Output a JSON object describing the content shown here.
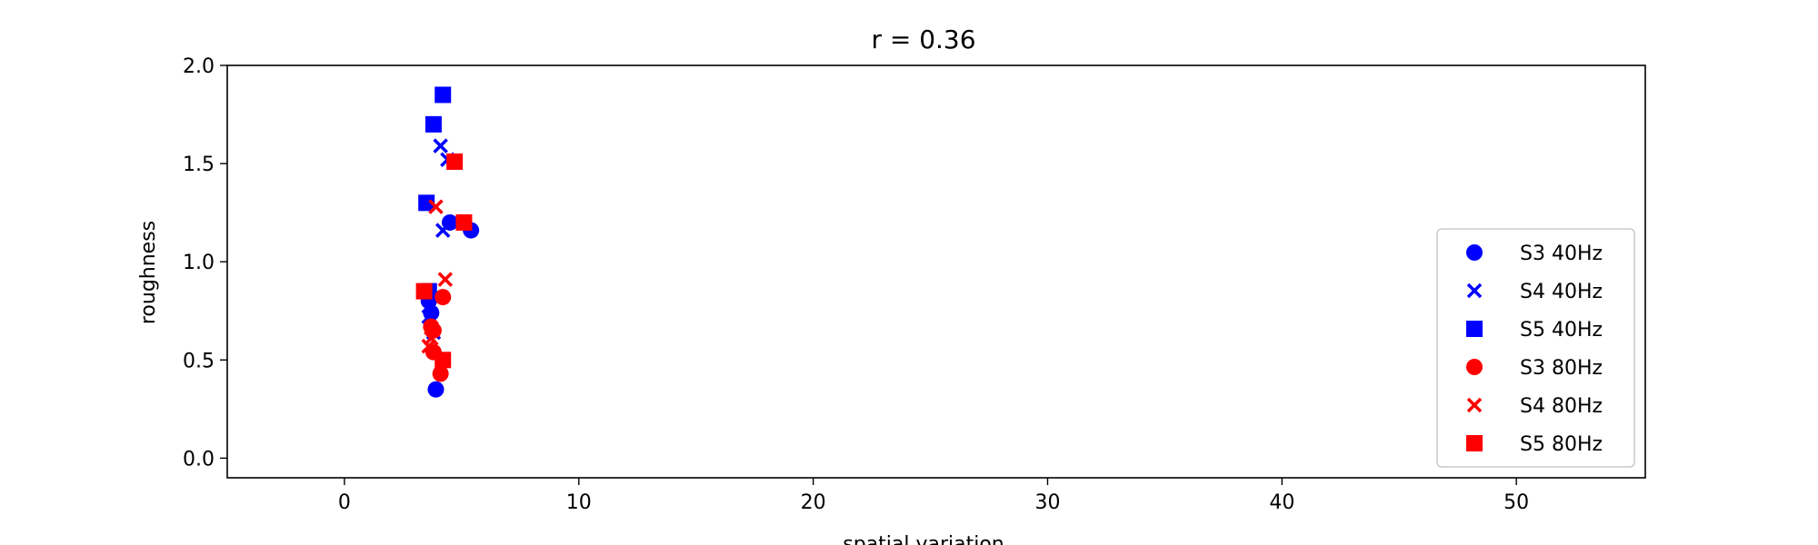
{
  "chart_data": {
    "type": "scatter",
    "title": "r = 0.36",
    "xlabel": "spatial variation",
    "ylabel": "roughness",
    "xlim": [
      -5,
      55.5
    ],
    "ylim": [
      -0.1,
      2.0
    ],
    "xticks": [
      0,
      10,
      20,
      30,
      40,
      50
    ],
    "yticks": [
      0.0,
      0.5,
      1.0,
      1.5,
      2.0
    ],
    "xtick_labels": [
      "0",
      "10",
      "20",
      "30",
      "40",
      "50"
    ],
    "ytick_labels": [
      "0.0",
      "0.5",
      "1.0",
      "1.5",
      "2.0"
    ],
    "legend_position": "lower right",
    "series": [
      {
        "name": "S3 40Hz",
        "color": "#0000ff",
        "marker": "circle",
        "points": [
          [
            3.6,
            0.8
          ],
          [
            3.7,
            0.74
          ],
          [
            3.9,
            0.35
          ],
          [
            4.5,
            1.2
          ],
          [
            5.4,
            1.16
          ]
        ]
      },
      {
        "name": "S4 40Hz",
        "color": "#0000ff",
        "marker": "x",
        "points": [
          [
            4.1,
            1.59
          ],
          [
            4.4,
            1.52
          ],
          [
            4.2,
            1.16
          ],
          [
            3.6,
            0.72
          ],
          [
            3.8,
            0.64
          ]
        ]
      },
      {
        "name": "S5 40Hz",
        "color": "#0000ff",
        "marker": "square",
        "points": [
          [
            4.2,
            1.85
          ],
          [
            3.8,
            1.7
          ],
          [
            3.5,
            1.3
          ],
          [
            3.6,
            0.85
          ]
        ]
      },
      {
        "name": "S3 80Hz",
        "color": "#ff0000",
        "marker": "circle",
        "points": [
          [
            4.2,
            0.82
          ],
          [
            3.7,
            0.67
          ],
          [
            3.8,
            0.65
          ],
          [
            3.8,
            0.54
          ],
          [
            4.1,
            0.43
          ]
        ]
      },
      {
        "name": "S4 80Hz",
        "color": "#ff0000",
        "marker": "x",
        "points": [
          [
            3.9,
            1.28
          ],
          [
            4.3,
            0.91
          ],
          [
            3.7,
            0.61
          ],
          [
            3.6,
            0.57
          ]
        ]
      },
      {
        "name": "S5 80Hz",
        "color": "#ff0000",
        "marker": "square",
        "points": [
          [
            4.7,
            1.51
          ],
          [
            5.1,
            1.2
          ],
          [
            3.4,
            0.85
          ],
          [
            4.2,
            0.5
          ]
        ]
      }
    ]
  }
}
